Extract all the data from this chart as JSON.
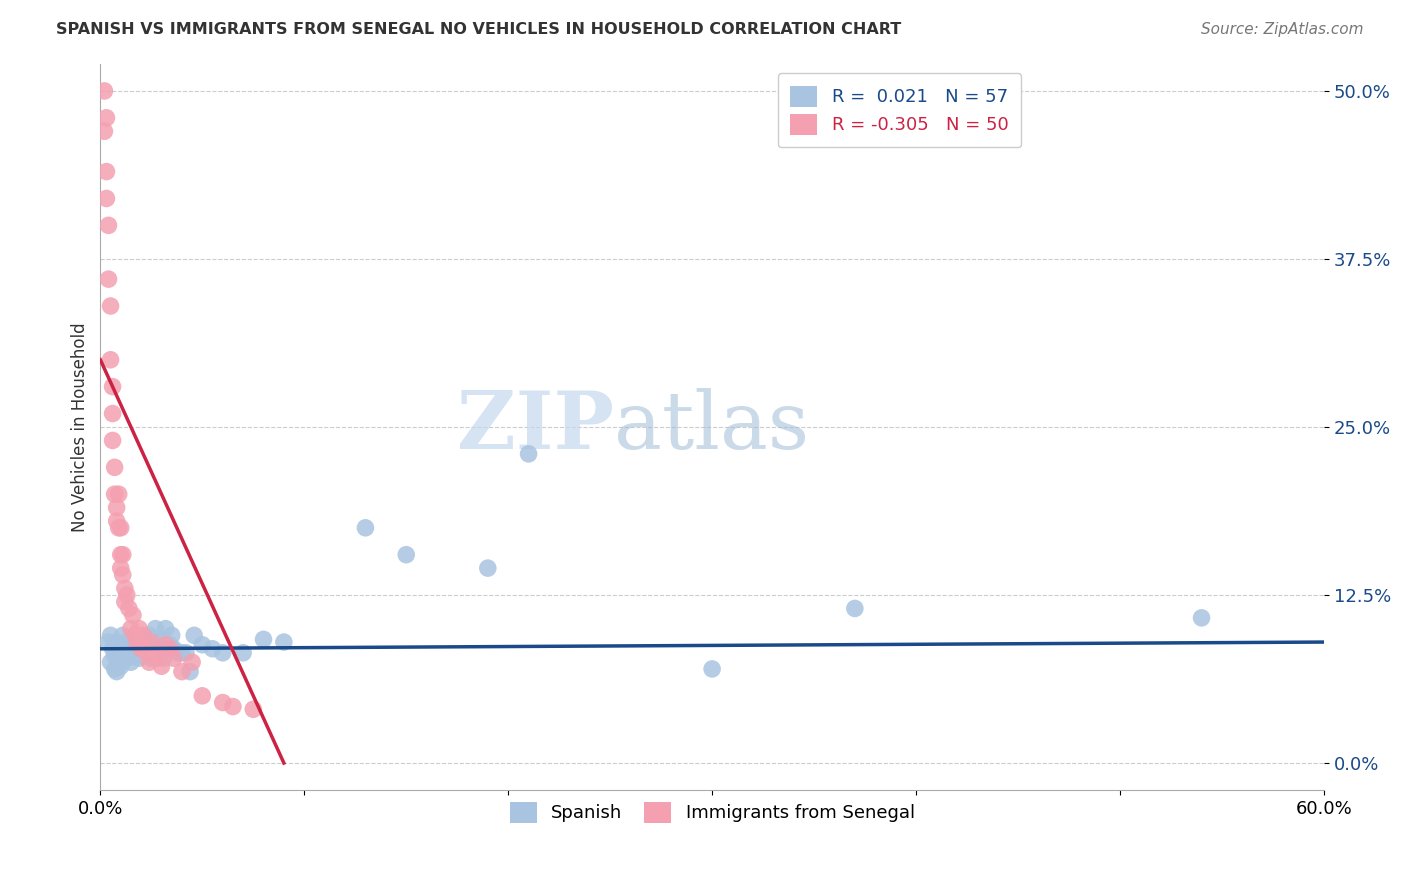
{
  "title": "SPANISH VS IMMIGRANTS FROM SENEGAL NO VEHICLES IN HOUSEHOLD CORRELATION CHART",
  "source": "Source: ZipAtlas.com",
  "ylabel": "No Vehicles in Household",
  "xlim": [
    0.0,
    0.6
  ],
  "ylim": [
    -0.02,
    0.52
  ],
  "yticks": [
    0.0,
    0.125,
    0.25,
    0.375,
    0.5
  ],
  "ytick_labels": [
    "0.0%",
    "12.5%",
    "25.0%",
    "37.5%",
    "50.0%"
  ],
  "xticks": [
    0.0,
    0.1,
    0.2,
    0.3,
    0.4,
    0.5,
    0.6
  ],
  "xtick_labels": [
    "0.0%",
    "",
    "",
    "",
    "",
    "",
    "60.0%"
  ],
  "blue_R": 0.021,
  "blue_N": 57,
  "pink_R": -0.305,
  "pink_N": 50,
  "blue_color": "#a8c4e0",
  "pink_color": "#f4a0b0",
  "blue_line_color": "#1a4a8a",
  "pink_line_color": "#cc2244",
  "legend_label_blue": "Spanish",
  "legend_label_pink": "Immigrants from Senegal",
  "watermark_zip": "ZIP",
  "watermark_atlas": "atlas",
  "blue_trend_y0": 0.085,
  "blue_trend_y1": 0.09,
  "pink_trend_x0": 0.0,
  "pink_trend_y0": 0.3,
  "pink_trend_x1": 0.09,
  "pink_trend_y1": 0.0,
  "blue_scatter_x": [
    0.004,
    0.005,
    0.005,
    0.006,
    0.007,
    0.007,
    0.008,
    0.008,
    0.009,
    0.009,
    0.01,
    0.01,
    0.011,
    0.012,
    0.013,
    0.013,
    0.014,
    0.015,
    0.015,
    0.016,
    0.017,
    0.018,
    0.019,
    0.02,
    0.021,
    0.022,
    0.023,
    0.024,
    0.025,
    0.026,
    0.027,
    0.028,
    0.029,
    0.03,
    0.031,
    0.032,
    0.034,
    0.035,
    0.036,
    0.038,
    0.04,
    0.042,
    0.044,
    0.046,
    0.05,
    0.055,
    0.06,
    0.07,
    0.08,
    0.09,
    0.13,
    0.15,
    0.19,
    0.21,
    0.3,
    0.37,
    0.54
  ],
  "blue_scatter_y": [
    0.09,
    0.075,
    0.095,
    0.085,
    0.08,
    0.07,
    0.09,
    0.068,
    0.085,
    0.075,
    0.08,
    0.072,
    0.095,
    0.082,
    0.09,
    0.078,
    0.085,
    0.09,
    0.075,
    0.082,
    0.095,
    0.085,
    0.078,
    0.092,
    0.08,
    0.088,
    0.082,
    0.095,
    0.078,
    0.09,
    0.1,
    0.088,
    0.082,
    0.092,
    0.078,
    0.1,
    0.088,
    0.095,
    0.085,
    0.082,
    0.082,
    0.082,
    0.068,
    0.095,
    0.088,
    0.085,
    0.082,
    0.082,
    0.092,
    0.09,
    0.175,
    0.155,
    0.145,
    0.23,
    0.07,
    0.115,
    0.108
  ],
  "pink_scatter_x": [
    0.002,
    0.002,
    0.003,
    0.003,
    0.003,
    0.004,
    0.004,
    0.005,
    0.005,
    0.006,
    0.006,
    0.006,
    0.007,
    0.007,
    0.008,
    0.008,
    0.009,
    0.009,
    0.01,
    0.01,
    0.01,
    0.011,
    0.011,
    0.012,
    0.012,
    0.013,
    0.014,
    0.015,
    0.016,
    0.017,
    0.018,
    0.019,
    0.02,
    0.021,
    0.022,
    0.023,
    0.024,
    0.025,
    0.026,
    0.028,
    0.03,
    0.032,
    0.034,
    0.036,
    0.04,
    0.045,
    0.05,
    0.06,
    0.065,
    0.075
  ],
  "pink_scatter_y": [
    0.47,
    0.5,
    0.44,
    0.48,
    0.42,
    0.4,
    0.36,
    0.34,
    0.3,
    0.28,
    0.26,
    0.24,
    0.22,
    0.2,
    0.19,
    0.18,
    0.2,
    0.175,
    0.175,
    0.155,
    0.145,
    0.155,
    0.14,
    0.13,
    0.12,
    0.125,
    0.115,
    0.1,
    0.11,
    0.095,
    0.09,
    0.1,
    0.085,
    0.095,
    0.085,
    0.082,
    0.075,
    0.09,
    0.082,
    0.078,
    0.072,
    0.088,
    0.085,
    0.078,
    0.068,
    0.075,
    0.05,
    0.045,
    0.042,
    0.04
  ]
}
